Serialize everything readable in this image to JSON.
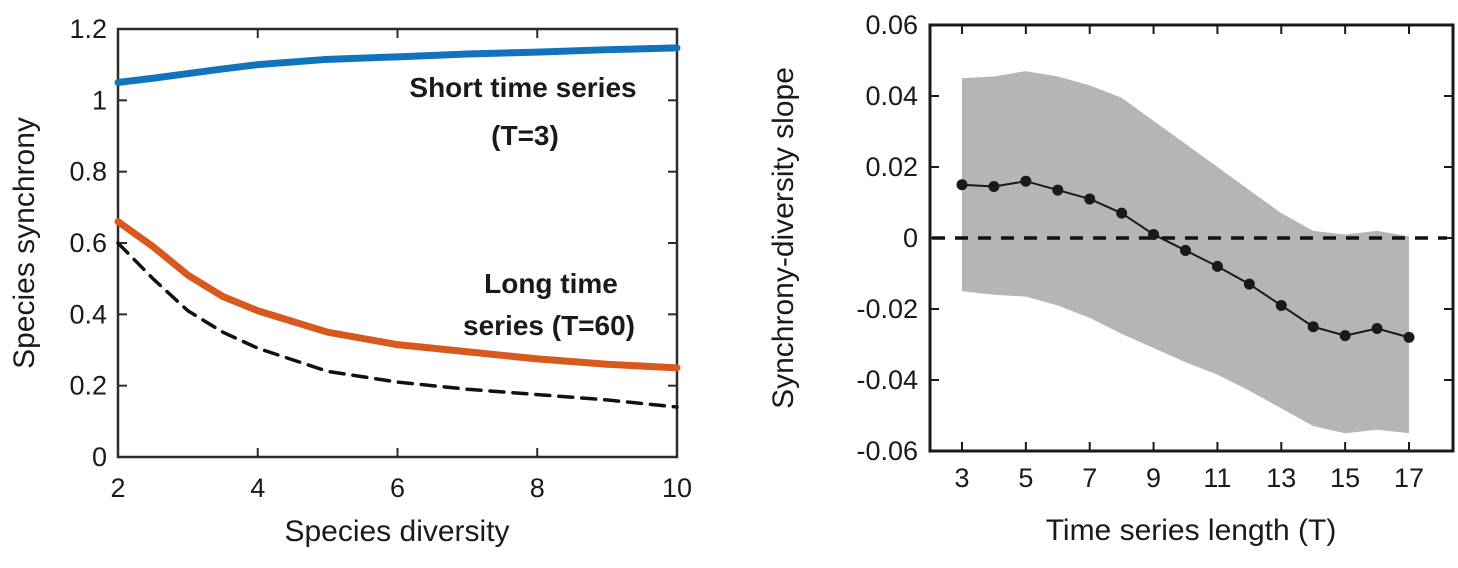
{
  "page": {
    "background": "#ffffff"
  },
  "chart_data": [
    {
      "id": "species-synchrony-vs-diversity",
      "type": "line",
      "title": "",
      "xlabel": "Species diversity",
      "ylabel": "Species synchrony",
      "xlim": [
        2,
        10
      ],
      "ylim": [
        0,
        1.2
      ],
      "grid": false,
      "legend_position": "annotations-inside",
      "xticks": [
        2,
        4,
        6,
        8,
        10
      ],
      "xtick_labels": [
        "2",
        "4",
        "6",
        "8",
        "10"
      ],
      "yticks": [
        0,
        0.2,
        0.4,
        0.6,
        0.8,
        1,
        1.2
      ],
      "ytick_labels": [
        "0",
        "0.2",
        "0.4",
        "0.6",
        "0.8",
        "1",
        "1.2"
      ],
      "x": [
        2,
        2.5,
        3,
        3.5,
        4,
        5,
        6,
        7,
        8,
        9,
        10
      ],
      "series": [
        {
          "name": "Short time series (T=3)",
          "color": "#1273bd",
          "line_style": "solid",
          "line_width": 7,
          "values": [
            1.05,
            1.062,
            1.075,
            1.088,
            1.1,
            1.115,
            1.122,
            1.13,
            1.135,
            1.142,
            1.147
          ]
        },
        {
          "name": "Long time series (T=60)",
          "color": "#d8581d",
          "line_style": "solid",
          "line_width": 7,
          "values": [
            0.66,
            0.59,
            0.51,
            0.45,
            0.41,
            0.35,
            0.315,
            0.295,
            0.275,
            0.26,
            0.25
          ]
        },
        {
          "name": "",
          "color": "#111111",
          "line_style": "dashed",
          "line_width": 3.5,
          "values": [
            0.6,
            0.5,
            0.41,
            0.35,
            0.305,
            0.24,
            0.21,
            0.19,
            0.175,
            0.16,
            0.14
          ]
        }
      ],
      "annotations": [
        {
          "id": "short-series-label",
          "color": "#4472c4",
          "lines": [
            "Short time series",
            "(T=3)"
          ]
        },
        {
          "id": "long-series-label",
          "color": "#c00000",
          "lines": [
            "Long time",
            "series (T=60)"
          ]
        }
      ]
    },
    {
      "id": "synchrony-diversity-slope-vs-length",
      "type": "line",
      "title": "",
      "xlabel": "Time series length (T)",
      "ylabel": "Synchrony-diversity slope",
      "xlim": [
        3,
        17
      ],
      "ylim": [
        -0.06,
        0.06
      ],
      "grid": false,
      "xticks": [
        3,
        5,
        7,
        9,
        11,
        13,
        15,
        17
      ],
      "xtick_labels": [
        "3",
        "5",
        "7",
        "9",
        "11",
        "13",
        "15",
        "17"
      ],
      "yticks": [
        0.06,
        0.04,
        0.02,
        0,
        -0.02,
        -0.04,
        -0.06
      ],
      "ytick_labels": [
        "0.06",
        "0.04",
        "0.02",
        "0",
        "-0.02",
        "-0.04",
        "-0.06"
      ],
      "x": [
        3,
        4,
        5,
        6,
        7,
        8,
        9,
        10,
        11,
        12,
        13,
        14,
        15,
        16,
        17
      ],
      "series": [
        {
          "name": "",
          "color": "#1a1a1a",
          "line_style": "solid",
          "line_width": 2,
          "marker": "circle",
          "marker_size": 5.5,
          "values": [
            0.015,
            0.0145,
            0.016,
            0.0135,
            0.011,
            0.007,
            0.001,
            -0.0035,
            -0.008,
            -0.013,
            -0.019,
            -0.025,
            -0.0275,
            -0.0255,
            -0.028
          ]
        }
      ],
      "band": {
        "color": "#b5b5b5",
        "upper": [
          0.045,
          0.0455,
          0.047,
          0.0455,
          0.043,
          0.0395,
          0.033,
          0.0265,
          0.02,
          0.0135,
          0.007,
          0.002,
          0.001,
          0.002,
          0.0005
        ],
        "lower": [
          -0.015,
          -0.016,
          -0.0165,
          -0.019,
          -0.0225,
          -0.027,
          -0.031,
          -0.035,
          -0.0385,
          -0.043,
          -0.048,
          -0.053,
          -0.055,
          -0.054,
          -0.055
        ]
      },
      "zero_line": {
        "value": 0,
        "style": "dashed",
        "color": "#111111"
      }
    }
  ]
}
